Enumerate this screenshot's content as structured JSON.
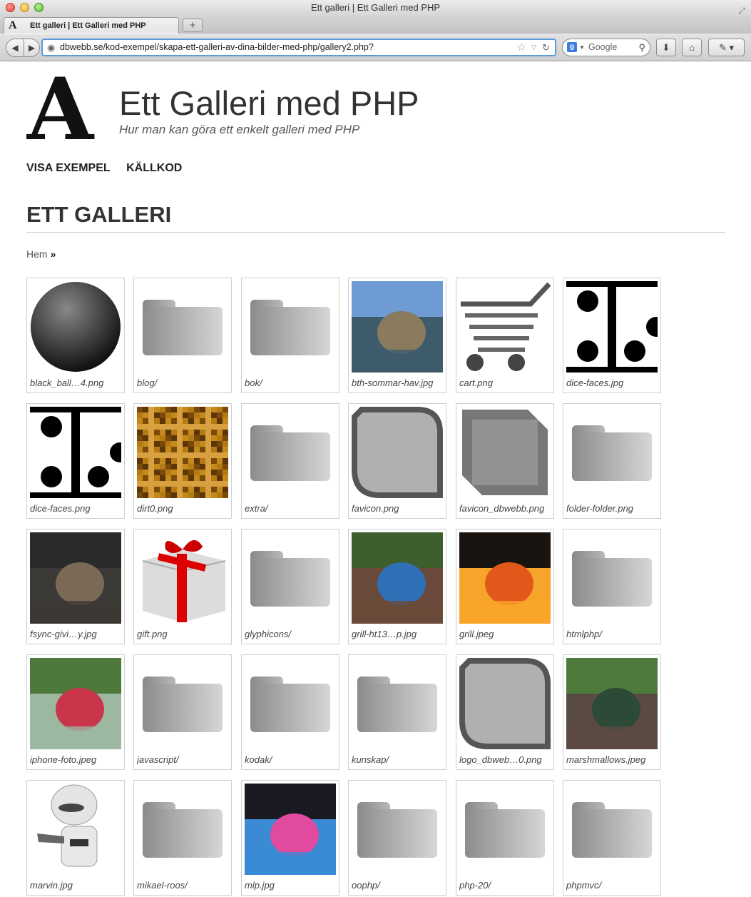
{
  "window": {
    "title": "Ett galleri | Ett Galleri med PHP"
  },
  "tabs": [
    {
      "label": "Ett galleri | Ett Galleri med PHP",
      "favicon": "A"
    }
  ],
  "toolbar": {
    "url": "dbwebb.se/kod-exempel/skapa-ett-galleri-av-dina-bilder-med-php/gallery2.php?",
    "search_placeholder": "Google"
  },
  "site": {
    "logo_letter": "A",
    "title": "Ett Galleri med PHP",
    "slogan": "Hur man kan göra ett enkelt galleri med PHP"
  },
  "nav": [
    {
      "label": "VISA EXEMPEL"
    },
    {
      "label": "KÄLLKOD"
    }
  ],
  "page": {
    "heading": "ETT GALLERI"
  },
  "breadcrumb": {
    "home": "Hem",
    "separator": "»"
  },
  "gallery": [
    {
      "name": "black_ball…4.png",
      "kind": "ball"
    },
    {
      "name": "blog/",
      "kind": "folder"
    },
    {
      "name": "bok/",
      "kind": "folder"
    },
    {
      "name": "bth-sommar-hav.jpg",
      "kind": "photo",
      "colors": [
        "#6f9bd4",
        "#8a7b5f",
        "#3e5b6b"
      ]
    },
    {
      "name": "cart.png",
      "kind": "cart"
    },
    {
      "name": "dice-faces.jpg",
      "kind": "dice"
    },
    {
      "name": "dice-faces.png",
      "kind": "dice"
    },
    {
      "name": "dirt0.png",
      "kind": "dirt"
    },
    {
      "name": "extra/",
      "kind": "folder"
    },
    {
      "name": "favicon.png",
      "kind": "favicon"
    },
    {
      "name": "favicon_dbwebb.png",
      "kind": "favicon2"
    },
    {
      "name": "folder-folder.png",
      "kind": "folder"
    },
    {
      "name": "fsync-givi…y.jpg",
      "kind": "photo",
      "colors": [
        "#2a2a2a",
        "#7a6a55",
        "#3c3a36"
      ]
    },
    {
      "name": "gift.png",
      "kind": "gift"
    },
    {
      "name": "glyphicons/",
      "kind": "folder"
    },
    {
      "name": "grill-ht13…p.jpg",
      "kind": "photo",
      "colors": [
        "#3f5e2e",
        "#2f6fb5",
        "#6a4a3a"
      ]
    },
    {
      "name": "grill.jpeg",
      "kind": "photo",
      "colors": [
        "#1a1410",
        "#e2581a",
        "#f7a52a"
      ]
    },
    {
      "name": "htmlphp/",
      "kind": "folder"
    },
    {
      "name": "iphone-foto.jpeg",
      "kind": "photo",
      "colors": [
        "#4d7a3a",
        "#c9354a",
        "#9db8a0"
      ]
    },
    {
      "name": "javascript/",
      "kind": "folder"
    },
    {
      "name": "kodak/",
      "kind": "folder"
    },
    {
      "name": "kunskap/",
      "kind": "folder"
    },
    {
      "name": "logo_dbweb…0.png",
      "kind": "favicon"
    },
    {
      "name": "marshmallows.jpeg",
      "kind": "photo",
      "colors": [
        "#4e7a3c",
        "#2c4a35",
        "#5a4a44"
      ]
    },
    {
      "name": "marvin.jpg",
      "kind": "robot"
    },
    {
      "name": "mikael-roos/",
      "kind": "folder"
    },
    {
      "name": "mlp.jpg",
      "kind": "photo",
      "colors": [
        "#1a1a22",
        "#e24aa0",
        "#3a8ad4"
      ]
    },
    {
      "name": "oophp/",
      "kind": "folder"
    },
    {
      "name": "php-20/",
      "kind": "folder"
    },
    {
      "name": "phpmvc/",
      "kind": "folder"
    }
  ]
}
